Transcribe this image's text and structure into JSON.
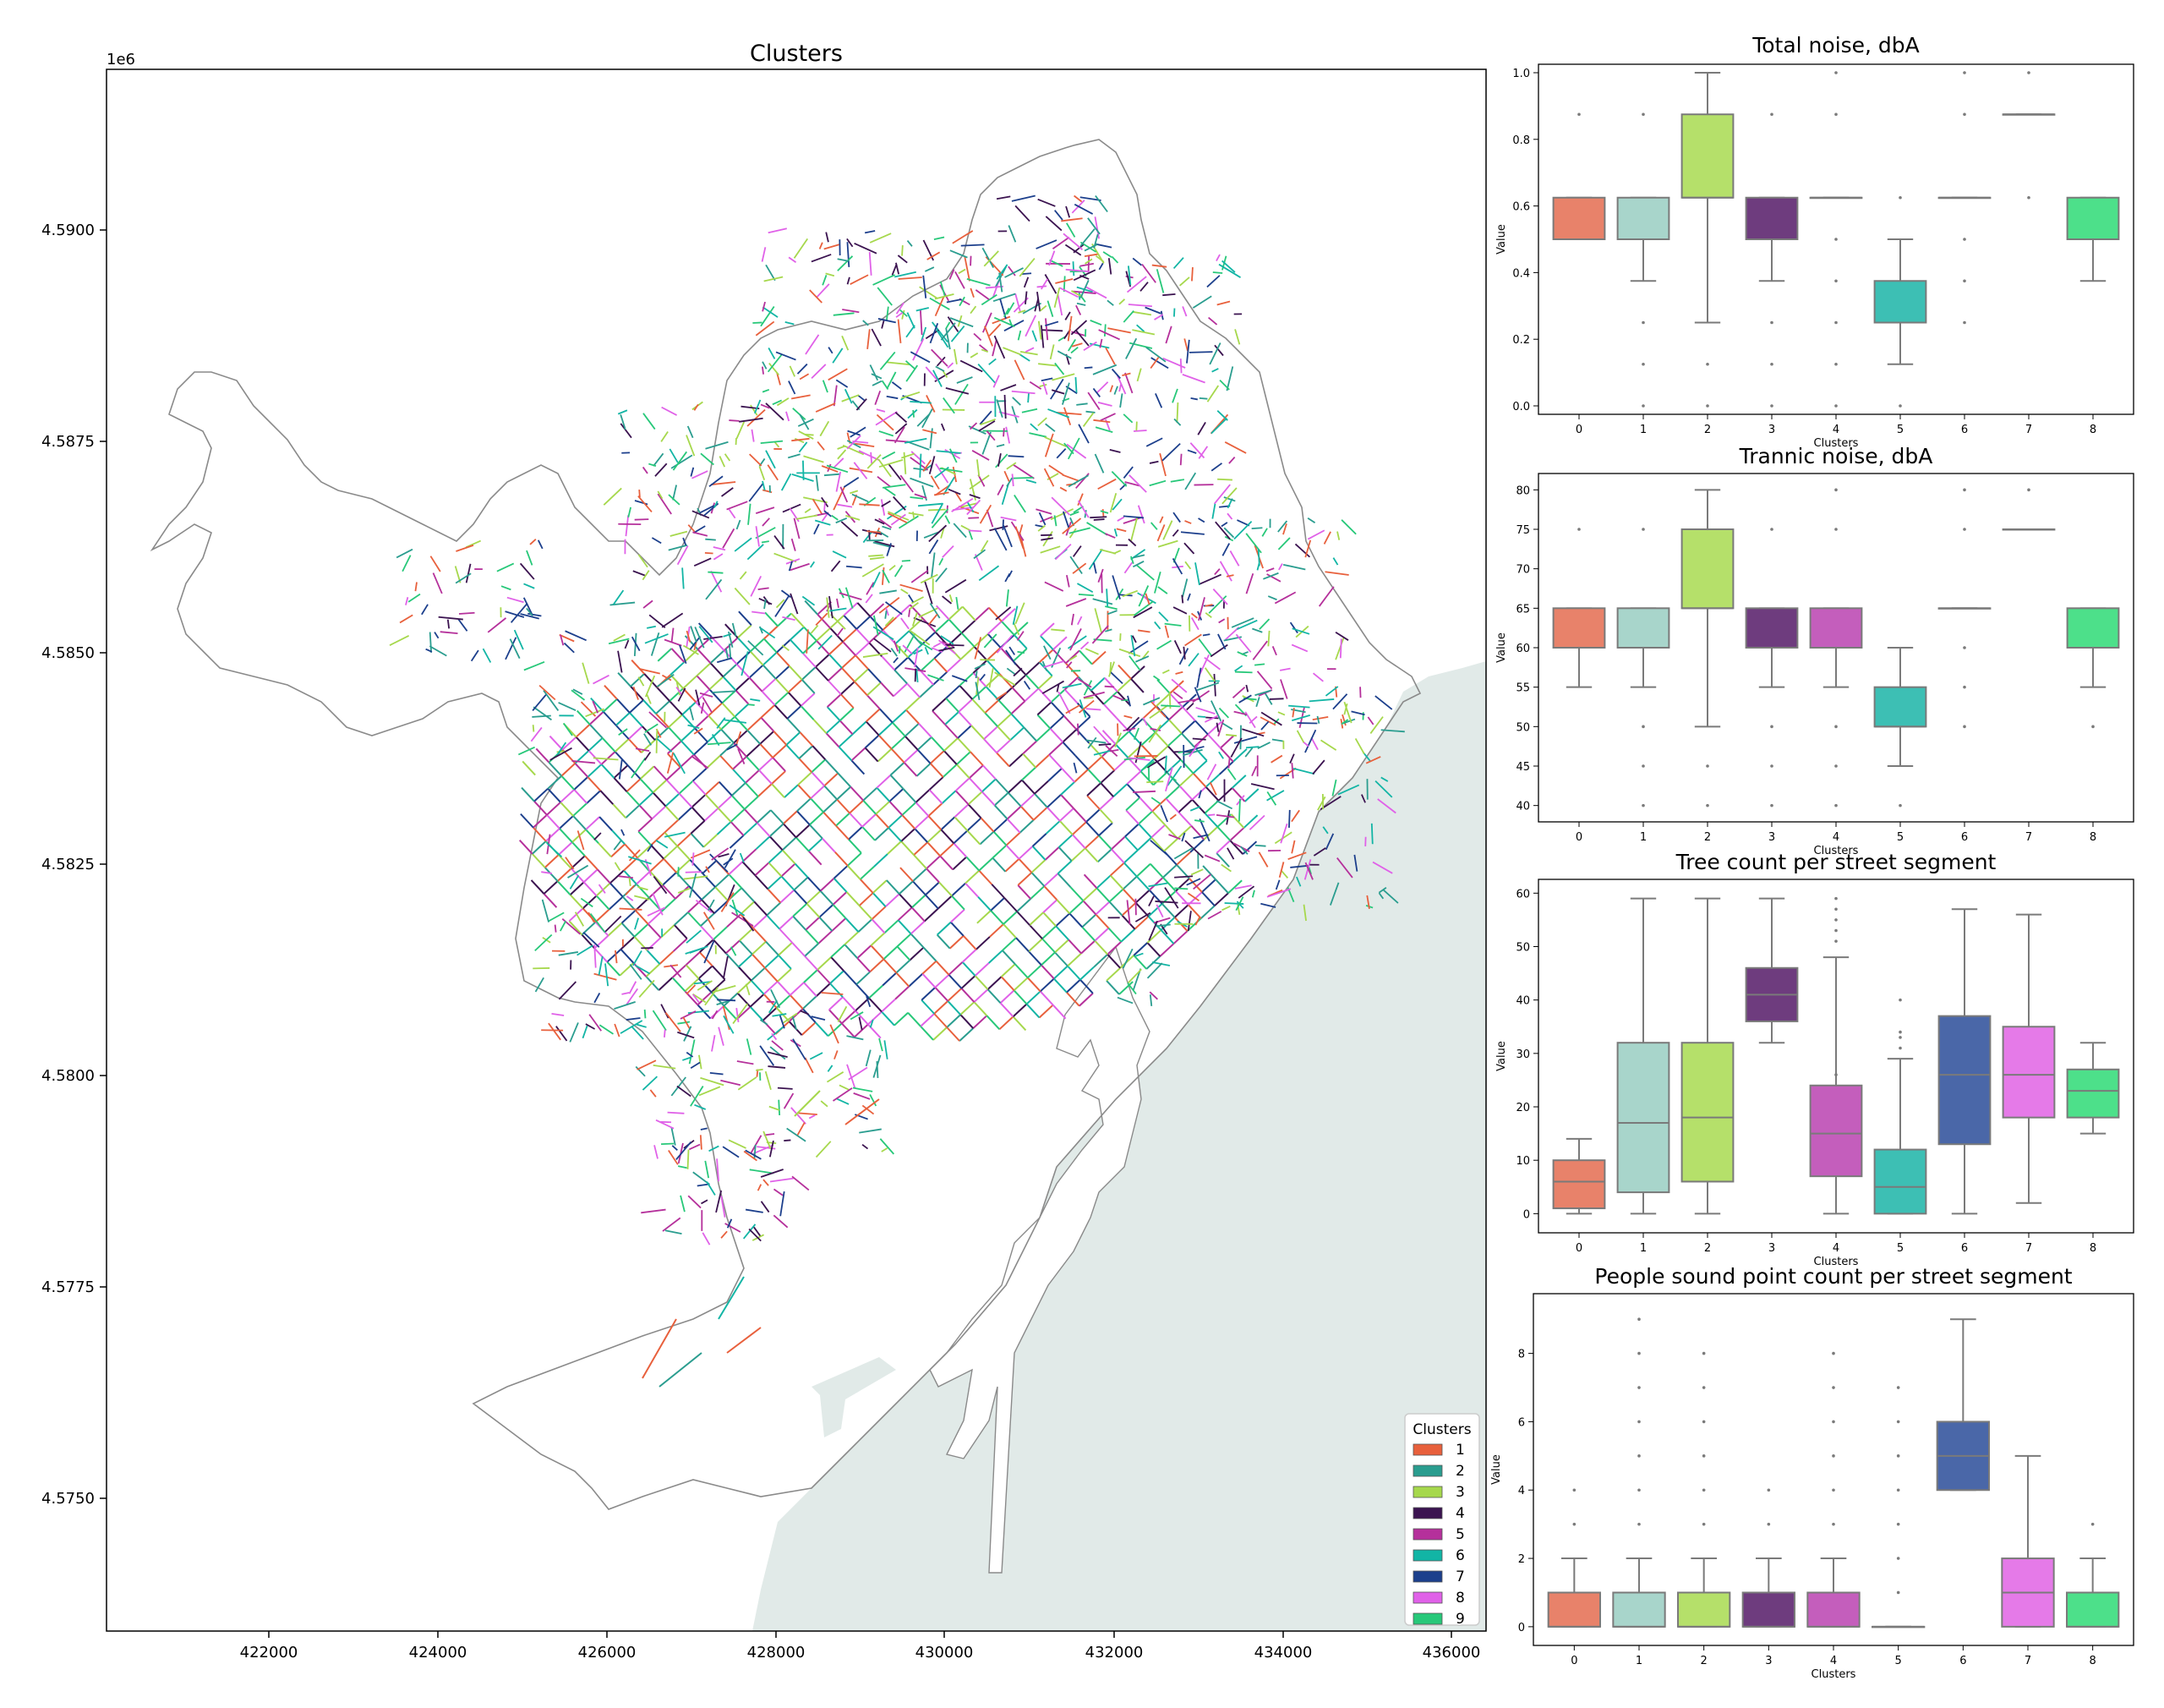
{
  "map": {
    "title": "Clusters",
    "exponent_label": "1e6",
    "x_ticks": [
      "422000",
      "424000",
      "426000",
      "428000",
      "430000",
      "432000",
      "434000",
      "436000"
    ],
    "y_ticks": [
      "4.5900",
      "4.5875",
      "4.5850",
      "4.5825",
      "4.5800",
      "4.5775",
      "4.5750"
    ],
    "legend": {
      "title": "Clusters",
      "items": [
        {
          "label": "1",
          "color": "#e8603c"
        },
        {
          "label": "2",
          "color": "#2a9d8f"
        },
        {
          "label": "3",
          "color": "#a6d84c"
        },
        {
          "label": "4",
          "color": "#3b1350"
        },
        {
          "label": "5",
          "color": "#b5309b"
        },
        {
          "label": "6",
          "color": "#12b5a5"
        },
        {
          "label": "7",
          "color": "#1c3f8c"
        },
        {
          "label": "8",
          "color": "#e061e8"
        },
        {
          "label": "9",
          "color": "#27c879"
        }
      ]
    },
    "sea_color": "#e1eae8",
    "boundary_color": "#8a8a8a"
  },
  "chart_data": [
    {
      "type": "box",
      "title": "Total noise, dbA",
      "xlabel": "Clusters",
      "ylabel": "Value",
      "ylim": [
        0.0,
        1.0
      ],
      "yticks": [
        "0.0",
        "0.2",
        "0.4",
        "0.6",
        "0.8",
        "1.0"
      ],
      "categories": [
        "0",
        "1",
        "2",
        "3",
        "4",
        "5",
        "6",
        "7",
        "8"
      ],
      "boxes": [
        {
          "cat": "0",
          "color": "#e8826a",
          "q1": 0.5,
          "med": 0.5,
          "q3": 0.625,
          "lo": 0.5,
          "hi": 0.625,
          "fliers": [
            0.875
          ]
        },
        {
          "cat": "1",
          "color": "#a8d5cb",
          "q1": 0.5,
          "med": 0.5,
          "q3": 0.625,
          "lo": 0.375,
          "hi": 0.625,
          "fliers": [
            0.875,
            0.25,
            0.125,
            0.0
          ]
        },
        {
          "cat": "2",
          "color": "#b5e06a",
          "q1": 0.625,
          "med": 0.625,
          "q3": 0.875,
          "lo": 0.25,
          "hi": 1.0,
          "fliers": [
            0.125,
            0.0
          ]
        },
        {
          "cat": "3",
          "color": "#6e3c7e",
          "q1": 0.5,
          "med": 0.5,
          "q3": 0.625,
          "lo": 0.375,
          "hi": 0.625,
          "fliers": [
            0.875,
            0.25,
            0.125,
            0.0
          ]
        },
        {
          "cat": "4",
          "color": "#c45ebc",
          "q1": 0.625,
          "med": 0.625,
          "q3": 0.625,
          "lo": 0.625,
          "hi": 0.625,
          "fliers": [
            1.0,
            0.875,
            0.5,
            0.375,
            0.25,
            0.125,
            0.0
          ]
        },
        {
          "cat": "5",
          "color": "#3dbfb4",
          "q1": 0.25,
          "med": 0.25,
          "q3": 0.375,
          "lo": 0.125,
          "hi": 0.5,
          "fliers": [
            0.625,
            0.0
          ]
        },
        {
          "cat": "6",
          "color": "#4a67a8",
          "q1": 0.625,
          "med": 0.625,
          "q3": 0.625,
          "lo": 0.625,
          "hi": 0.625,
          "fliers": [
            1.0,
            0.875,
            0.5,
            0.375,
            0.25
          ]
        },
        {
          "cat": "7",
          "color": "#e57ae8",
          "q1": 0.875,
          "med": 0.875,
          "q3": 0.875,
          "lo": 0.875,
          "hi": 0.875,
          "fliers": [
            1.0,
            0.625
          ]
        },
        {
          "cat": "8",
          "color": "#4de08a",
          "q1": 0.5,
          "med": 0.5,
          "q3": 0.625,
          "lo": 0.375,
          "hi": 0.625,
          "fliers": []
        }
      ]
    },
    {
      "type": "box",
      "title": "Trannic noise, dbA",
      "xlabel": "Clusters",
      "ylabel": "Value",
      "ylim": [
        39,
        81
      ],
      "yticks": [
        "40",
        "45",
        "50",
        "55",
        "60",
        "65",
        "70",
        "75",
        "80"
      ],
      "categories": [
        "0",
        "1",
        "2",
        "3",
        "4",
        "5",
        "6",
        "7",
        "8"
      ],
      "boxes": [
        {
          "cat": "0",
          "color": "#e8826a",
          "q1": 60,
          "med": 60,
          "q3": 65,
          "lo": 55,
          "hi": 65,
          "fliers": [
            75
          ]
        },
        {
          "cat": "1",
          "color": "#a8d5cb",
          "q1": 60,
          "med": 60,
          "q3": 65,
          "lo": 55,
          "hi": 65,
          "fliers": [
            75,
            50,
            45,
            40
          ]
        },
        {
          "cat": "2",
          "color": "#b5e06a",
          "q1": 65,
          "med": 65,
          "q3": 75,
          "lo": 50,
          "hi": 80,
          "fliers": [
            45,
            40
          ]
        },
        {
          "cat": "3",
          "color": "#6e3c7e",
          "q1": 60,
          "med": 60,
          "q3": 65,
          "lo": 55,
          "hi": 65,
          "fliers": [
            75,
            50,
            45,
            40
          ]
        },
        {
          "cat": "4",
          "color": "#c45ebc",
          "q1": 60,
          "med": 60,
          "q3": 65,
          "lo": 55,
          "hi": 65,
          "fliers": [
            80,
            75,
            50,
            45,
            40
          ]
        },
        {
          "cat": "5",
          "color": "#3dbfb4",
          "q1": 50,
          "med": 50,
          "q3": 55,
          "lo": 45,
          "hi": 60,
          "fliers": [
            40
          ]
        },
        {
          "cat": "6",
          "color": "#4a67a8",
          "q1": 65,
          "med": 65,
          "q3": 65,
          "lo": 65,
          "hi": 65,
          "fliers": [
            80,
            75,
            60,
            55,
            50
          ]
        },
        {
          "cat": "7",
          "color": "#e57ae8",
          "q1": 75,
          "med": 75,
          "q3": 75,
          "lo": 75,
          "hi": 75,
          "fliers": [
            80
          ]
        },
        {
          "cat": "8",
          "color": "#4de08a",
          "q1": 60,
          "med": 60,
          "q3": 65,
          "lo": 55,
          "hi": 65,
          "fliers": [
            50
          ]
        }
      ]
    },
    {
      "type": "box",
      "title": "Tree count per street segment",
      "xlabel": "Clusters",
      "ylabel": "Value",
      "ylim": [
        -2,
        61
      ],
      "yticks": [
        "0",
        "10",
        "20",
        "30",
        "40",
        "50",
        "60"
      ],
      "categories": [
        "0",
        "1",
        "2",
        "3",
        "4",
        "5",
        "6",
        "7",
        "8"
      ],
      "boxes": [
        {
          "cat": "0",
          "color": "#e8826a",
          "q1": 1,
          "med": 6,
          "q3": 10,
          "lo": 0,
          "hi": 14,
          "fliers": []
        },
        {
          "cat": "1",
          "color": "#a8d5cb",
          "q1": 4,
          "med": 17,
          "q3": 32,
          "lo": 0,
          "hi": 59,
          "fliers": []
        },
        {
          "cat": "2",
          "color": "#b5e06a",
          "q1": 6,
          "med": 18,
          "q3": 32,
          "lo": 0,
          "hi": 59,
          "fliers": []
        },
        {
          "cat": "3",
          "color": "#6e3c7e",
          "q1": 36,
          "med": 41,
          "q3": 46,
          "lo": 32,
          "hi": 59,
          "fliers": []
        },
        {
          "cat": "4",
          "color": "#c45ebc",
          "q1": 7,
          "med": 15,
          "q3": 24,
          "lo": 0,
          "hi": 48,
          "fliers": [
            59,
            57,
            55,
            53,
            51,
            26
          ]
        },
        {
          "cat": "5",
          "color": "#3dbfb4",
          "q1": 0,
          "med": 5,
          "q3": 12,
          "lo": 0,
          "hi": 29,
          "fliers": [
            40,
            34,
            33,
            31
          ]
        },
        {
          "cat": "6",
          "color": "#4a67a8",
          "q1": 13,
          "med": 26,
          "q3": 37,
          "lo": 0,
          "hi": 57,
          "fliers": []
        },
        {
          "cat": "7",
          "color": "#e57ae8",
          "q1": 18,
          "med": 26,
          "q3": 35,
          "lo": 2,
          "hi": 56,
          "fliers": []
        },
        {
          "cat": "8",
          "color": "#4de08a",
          "q1": 18,
          "med": 23,
          "q3": 27,
          "lo": 15,
          "hi": 32,
          "fliers": []
        }
      ]
    },
    {
      "type": "box",
      "title": "People sound point count per street segment",
      "xlabel": "Clusters",
      "ylabel": "Value",
      "ylim": [
        -0.3,
        9.5
      ],
      "yticks": [
        "0",
        "2",
        "4",
        "6",
        "8"
      ],
      "categories": [
        "0",
        "1",
        "2",
        "3",
        "4",
        "5",
        "6",
        "7",
        "8"
      ],
      "boxes": [
        {
          "cat": "0",
          "color": "#e8826a",
          "q1": 0,
          "med": 0,
          "q3": 1,
          "lo": 0,
          "hi": 2,
          "fliers": [
            3,
            4
          ]
        },
        {
          "cat": "1",
          "color": "#a8d5cb",
          "q1": 0,
          "med": 0,
          "q3": 1,
          "lo": 0,
          "hi": 2,
          "fliers": [
            3,
            4,
            5,
            6,
            7,
            8,
            9
          ]
        },
        {
          "cat": "2",
          "color": "#b5e06a",
          "q1": 0,
          "med": 0,
          "q3": 1,
          "lo": 0,
          "hi": 2,
          "fliers": [
            3,
            4,
            5,
            6,
            7,
            8
          ]
        },
        {
          "cat": "3",
          "color": "#6e3c7e",
          "q1": 0,
          "med": 0,
          "q3": 1,
          "lo": 0,
          "hi": 2,
          "fliers": [
            3,
            4
          ]
        },
        {
          "cat": "4",
          "color": "#c45ebc",
          "q1": 0,
          "med": 0,
          "q3": 1,
          "lo": 0,
          "hi": 2,
          "fliers": [
            3,
            4,
            5,
            6,
            7,
            8
          ]
        },
        {
          "cat": "5",
          "color": "#3dbfb4",
          "q1": 0,
          "med": 0,
          "q3": 0,
          "lo": 0,
          "hi": 0,
          "fliers": [
            1,
            2,
            3,
            4,
            5,
            6,
            7
          ]
        },
        {
          "cat": "6",
          "color": "#4a67a8",
          "q1": 4,
          "med": 5,
          "q3": 6,
          "lo": 4,
          "hi": 9,
          "fliers": []
        },
        {
          "cat": "7",
          "color": "#e57ae8",
          "q1": 0,
          "med": 1,
          "q3": 2,
          "lo": 0,
          "hi": 5,
          "fliers": []
        },
        {
          "cat": "8",
          "color": "#4de08a",
          "q1": 0,
          "med": 0,
          "q3": 1,
          "lo": 0,
          "hi": 2,
          "fliers": [
            3
          ]
        }
      ]
    }
  ]
}
